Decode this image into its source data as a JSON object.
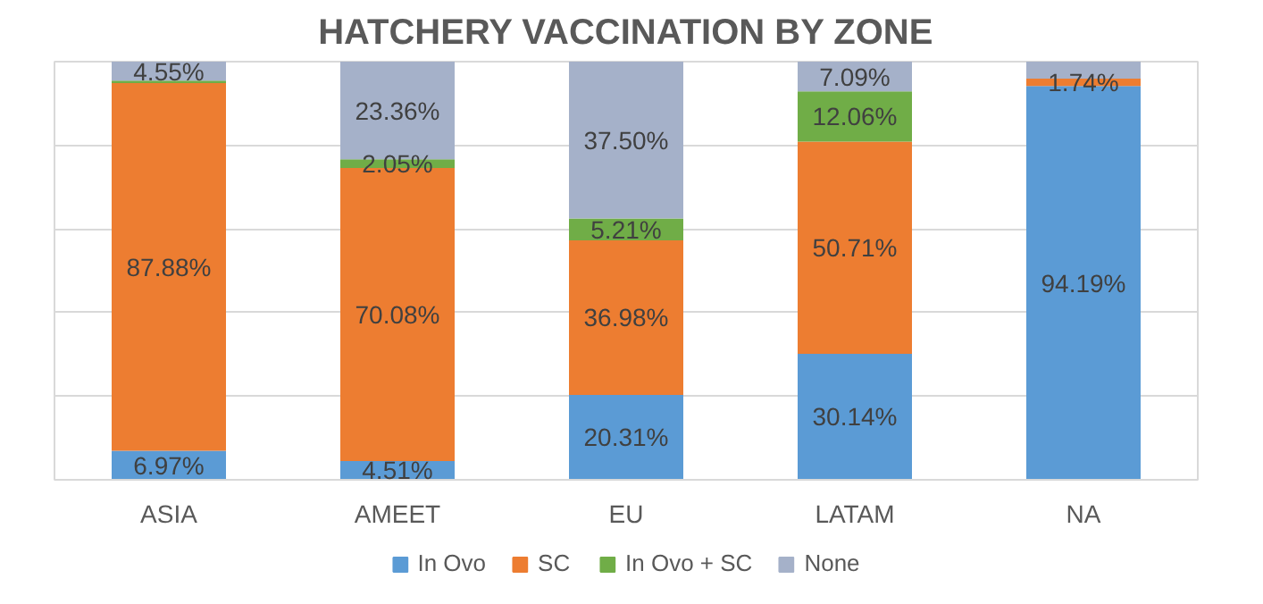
{
  "chart_data": {
    "type": "bar",
    "title": "HATCHERY VACCINATION BY ZONE",
    "stacked": true,
    "categories": [
      "ASIA",
      "AMEET",
      "EU",
      "LATAM",
      "NA"
    ],
    "series": [
      {
        "name": "In Ovo",
        "color": "#5b9bd5",
        "values": [
          6.97,
          4.51,
          20.31,
          30.14,
          94.19
        ],
        "value_labels": [
          "6.97%",
          "4.51%",
          "20.31%",
          "30.14%",
          "94.19%"
        ]
      },
      {
        "name": "SC",
        "color": "#ed7d31",
        "values": [
          87.88,
          70.08,
          36.98,
          50.71,
          1.74
        ],
        "value_labels": [
          "87.88%",
          "70.08%",
          "36.98%",
          "50.71%",
          "1.74%"
        ]
      },
      {
        "name": "In Ovo + SC",
        "color": "#70ad47",
        "values": [
          0.6,
          2.05,
          5.21,
          12.06,
          0
        ],
        "value_labels": [
          null,
          "2.05%",
          "5.21%",
          "12.06%",
          null
        ]
      },
      {
        "name": "None",
        "color": "#a5b1c9",
        "values": [
          4.55,
          23.36,
          37.5,
          7.09,
          4.07
        ],
        "value_labels": [
          "4.55%",
          "23.36%",
          "37.50%",
          "7.09%",
          null
        ]
      }
    ],
    "ylim": [
      0,
      100
    ],
    "yticks": [
      {
        "value": 0,
        "label": null
      },
      {
        "value": 20,
        "label": null
      },
      {
        "value": 40,
        "label": null
      },
      {
        "value": 60,
        "label": null
      },
      {
        "value": 80,
        "label": null
      },
      {
        "value": 100,
        "label": null
      }
    ],
    "tick_labels": "x",
    "grid": "y",
    "legend": "bottom"
  }
}
